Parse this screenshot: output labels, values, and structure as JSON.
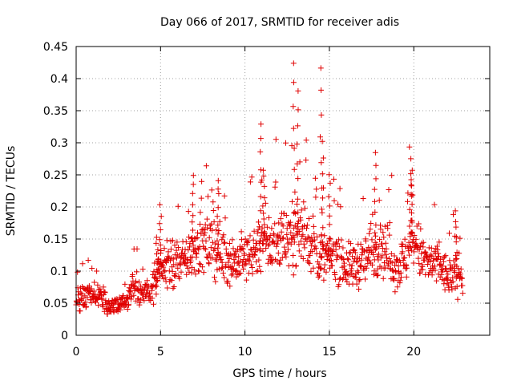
{
  "chart_data": {
    "type": "scatter",
    "title": "Day 066 of 2017, SRMTID for receiver adis",
    "xlabel": "GPS time / hours",
    "ylabel": "SRMTID / TECUs",
    "xlim": [
      0,
      24.5
    ],
    "ylim": [
      0,
      0.45
    ],
    "x_ticks": [
      "0",
      "5",
      "10",
      "15",
      "20"
    ],
    "y_ticks": [
      "0",
      "0.05",
      "0.1",
      "0.15",
      "0.2",
      "0.25",
      "0.3",
      "0.35",
      "0.4",
      "0.45"
    ],
    "grid": true,
    "marker": "plus",
    "color": "#e00000",
    "series": [
      {
        "name": "SRMTID",
        "profile": [
          [
            0.0,
            0.055
          ],
          [
            0.5,
            0.06
          ],
          [
            1.0,
            0.065
          ],
          [
            1.5,
            0.06
          ],
          [
            2.0,
            0.045
          ],
          [
            2.5,
            0.045
          ],
          [
            3.0,
            0.055
          ],
          [
            3.5,
            0.085
          ],
          [
            4.0,
            0.06
          ],
          [
            4.5,
            0.075
          ],
          [
            5.0,
            0.1
          ],
          [
            5.5,
            0.11
          ],
          [
            6.0,
            0.105
          ],
          [
            6.5,
            0.12
          ],
          [
            7.0,
            0.14
          ],
          [
            7.5,
            0.14
          ],
          [
            8.0,
            0.14
          ],
          [
            8.5,
            0.13
          ],
          [
            9.0,
            0.12
          ],
          [
            9.5,
            0.115
          ],
          [
            10.0,
            0.12
          ],
          [
            10.5,
            0.13
          ],
          [
            11.0,
            0.15
          ],
          [
            11.5,
            0.14
          ],
          [
            12.0,
            0.15
          ],
          [
            12.5,
            0.155
          ],
          [
            13.0,
            0.16
          ],
          [
            13.5,
            0.165
          ],
          [
            14.0,
            0.14
          ],
          [
            14.5,
            0.12
          ],
          [
            15.0,
            0.12
          ],
          [
            15.5,
            0.13
          ],
          [
            16.0,
            0.105
          ],
          [
            16.5,
            0.11
          ],
          [
            17.0,
            0.115
          ],
          [
            17.5,
            0.13
          ],
          [
            18.0,
            0.145
          ],
          [
            18.5,
            0.125
          ],
          [
            19.0,
            0.105
          ],
          [
            19.5,
            0.12
          ],
          [
            20.0,
            0.15
          ],
          [
            20.5,
            0.12
          ],
          [
            21.0,
            0.11
          ],
          [
            21.5,
            0.11
          ],
          [
            22.0,
            0.09
          ],
          [
            22.5,
            0.095
          ],
          [
            22.9,
            0.1
          ]
        ],
        "spikes": [
          {
            "x": 4.8,
            "y": 0.15
          },
          {
            "x": 5.0,
            "y": 0.2
          },
          {
            "x": 6.9,
            "y": 0.245
          },
          {
            "x": 8.4,
            "y": 0.245
          },
          {
            "x": 10.9,
            "y": 0.33
          },
          {
            "x": 11.1,
            "y": 0.26
          },
          {
            "x": 12.9,
            "y": 0.425
          },
          {
            "x": 13.1,
            "y": 0.38
          },
          {
            "x": 14.5,
            "y": 0.418
          },
          {
            "x": 14.6,
            "y": 0.3
          },
          {
            "x": 15.0,
            "y": 0.25
          },
          {
            "x": 17.7,
            "y": 0.285
          },
          {
            "x": 19.8,
            "y": 0.295
          },
          {
            "x": 19.9,
            "y": 0.26
          },
          {
            "x": 22.5,
            "y": 0.19
          }
        ],
        "n_points": 1150,
        "x_range": [
          0,
          22.9
        ]
      }
    ]
  }
}
